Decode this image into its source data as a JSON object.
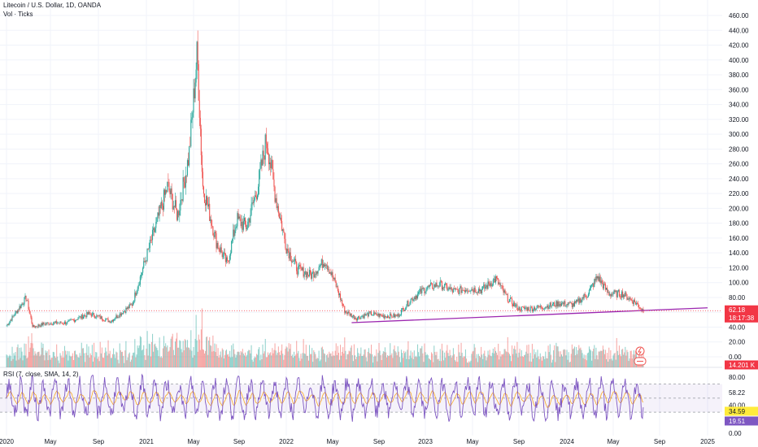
{
  "header": {
    "title": "Litecoin / U.S. Dollar, 1D, OANDA",
    "volume_label": "Vol · Ticks",
    "rsi_label": "RSI (7, close, SMA, 14, 2)"
  },
  "colors": {
    "up": "#26a69a",
    "down": "#ef5350",
    "trendline": "#9c27b0",
    "rsi_line": "#7e57c2",
    "rsi_ma": "#f9a825",
    "price_tag": "#f23645",
    "volume_tag": "#f23645",
    "rsi_tag": "#7e57c2",
    "rsi_ma_tag": "#ffeb3b"
  },
  "chart_data": {
    "type": "candlestick",
    "x_axis_labels": [
      "2020",
      "May",
      "Sep",
      "2021",
      "May",
      "Sep",
      "2022",
      "May",
      "Sep",
      "2023",
      "May",
      "Sep",
      "2024",
      "May",
      "Sep",
      "2025"
    ],
    "price_axis": {
      "ticks": [
        "0.00",
        "20.00",
        "40.00",
        "60.00",
        "80.00",
        "100.00",
        "120.00",
        "140.00",
        "160.00",
        "180.00",
        "200.00",
        "220.00",
        "240.00",
        "260.00",
        "280.00",
        "300.00",
        "320.00",
        "340.00",
        "360.00",
        "380.00",
        "400.00",
        "420.00",
        "440.00",
        "460.00"
      ],
      "range": [
        0,
        460
      ]
    },
    "price_series": [
      {
        "x": 2020.0,
        "close": 42
      },
      {
        "x": 2020.08,
        "close": 62
      },
      {
        "x": 2020.15,
        "close": 80
      },
      {
        "x": 2020.2,
        "close": 40
      },
      {
        "x": 2020.3,
        "close": 45
      },
      {
        "x": 2020.45,
        "close": 46
      },
      {
        "x": 2020.6,
        "close": 58
      },
      {
        "x": 2020.75,
        "close": 48
      },
      {
        "x": 2020.9,
        "close": 70
      },
      {
        "x": 2021.0,
        "close": 135
      },
      {
        "x": 2021.08,
        "close": 185
      },
      {
        "x": 2021.15,
        "close": 230
      },
      {
        "x": 2021.22,
        "close": 190
      },
      {
        "x": 2021.3,
        "close": 270
      },
      {
        "x": 2021.36,
        "close": 410
      },
      {
        "x": 2021.4,
        "close": 230
      },
      {
        "x": 2021.5,
        "close": 155
      },
      {
        "x": 2021.58,
        "close": 125
      },
      {
        "x": 2021.65,
        "close": 185
      },
      {
        "x": 2021.72,
        "close": 175
      },
      {
        "x": 2021.8,
        "close": 230
      },
      {
        "x": 2021.86,
        "close": 295
      },
      {
        "x": 2021.92,
        "close": 220
      },
      {
        "x": 2022.0,
        "close": 148
      },
      {
        "x": 2022.08,
        "close": 118
      },
      {
        "x": 2022.18,
        "close": 110
      },
      {
        "x": 2022.28,
        "close": 130
      },
      {
        "x": 2022.35,
        "close": 100
      },
      {
        "x": 2022.42,
        "close": 62
      },
      {
        "x": 2022.5,
        "close": 52
      },
      {
        "x": 2022.6,
        "close": 58
      },
      {
        "x": 2022.7,
        "close": 55
      },
      {
        "x": 2022.8,
        "close": 55
      },
      {
        "x": 2022.9,
        "close": 78
      },
      {
        "x": 2023.0,
        "close": 92
      },
      {
        "x": 2023.1,
        "close": 98
      },
      {
        "x": 2023.2,
        "close": 88
      },
      {
        "x": 2023.3,
        "close": 92
      },
      {
        "x": 2023.4,
        "close": 90
      },
      {
        "x": 2023.5,
        "close": 105
      },
      {
        "x": 2023.58,
        "close": 80
      },
      {
        "x": 2023.66,
        "close": 65
      },
      {
        "x": 2023.75,
        "close": 65
      },
      {
        "x": 2023.85,
        "close": 68
      },
      {
        "x": 2023.95,
        "close": 72
      },
      {
        "x": 2024.05,
        "close": 70
      },
      {
        "x": 2024.15,
        "close": 85
      },
      {
        "x": 2024.22,
        "close": 108
      },
      {
        "x": 2024.3,
        "close": 85
      },
      {
        "x": 2024.4,
        "close": 85
      },
      {
        "x": 2024.5,
        "close": 72
      },
      {
        "x": 2024.55,
        "close": 62
      }
    ],
    "trendline": {
      "x": [
        2022.47,
        2025.0
      ],
      "y": [
        46,
        66
      ]
    },
    "last_price": {
      "value": "62.18",
      "countdown": "18:17:38"
    },
    "volume": {
      "last_label": "14.201 K"
    },
    "rsi": {
      "ticks": [
        "80.00",
        "58.22",
        "40.00",
        "19.56",
        "0.00"
      ],
      "rsi_value_label": "34.59",
      "rsi_ma_value_label": "19.51",
      "upper_band": 70,
      "lower_band": 30,
      "mid_line": 50
    }
  }
}
